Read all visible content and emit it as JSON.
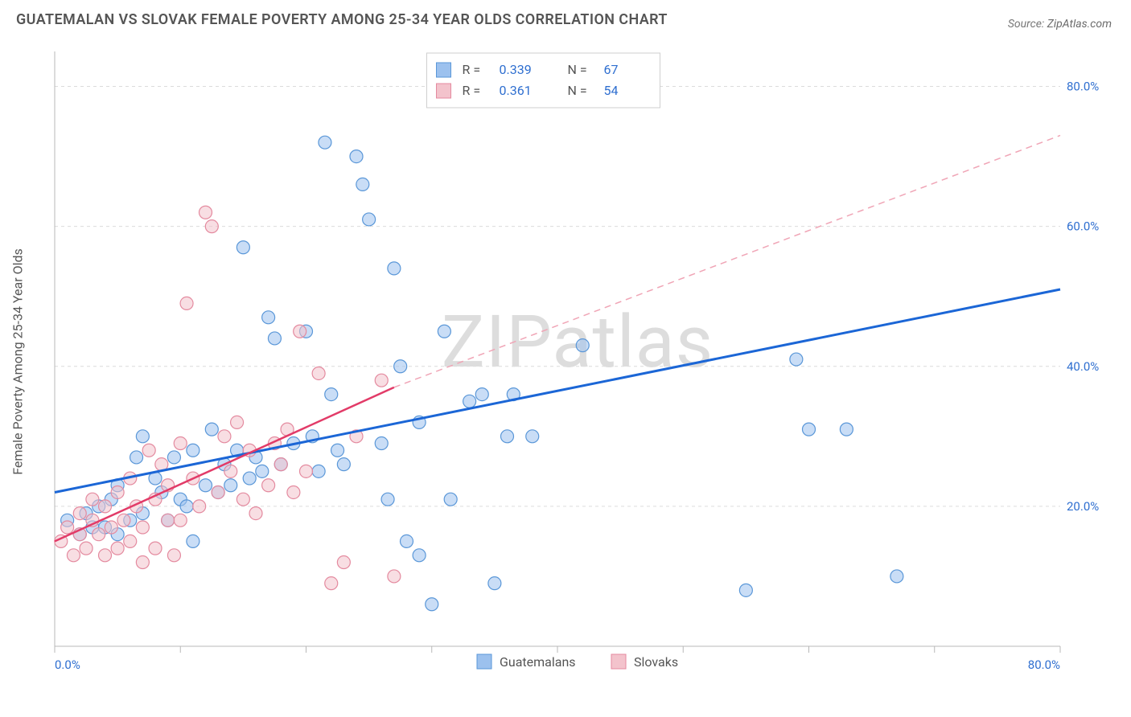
{
  "title": "GUATEMALAN VS SLOVAK FEMALE POVERTY AMONG 25-34 YEAR OLDS CORRELATION CHART",
  "source_label": "Source:",
  "source_value": "ZipAtlas.com",
  "ylabel": "Female Poverty Among 25-34 Year Olds",
  "watermark": "ZIPatlas",
  "chart": {
    "type": "scatter",
    "xlim": [
      0,
      80
    ],
    "ylim": [
      0,
      85
    ],
    "x_ticks": [
      0,
      10,
      20,
      30,
      40,
      50,
      60,
      70,
      80
    ],
    "x_tick_labels": {
      "0": "0.0%",
      "80": "80.0%"
    },
    "y_gridlines": [
      20,
      40,
      60,
      80
    ],
    "y_tick_labels": {
      "20": "20.0%",
      "40": "40.0%",
      "60": "60.0%",
      "80": "80.0%"
    },
    "background_color": "#ffffff",
    "grid_color": "#dcdcdc",
    "axis_color": "#b8b8b8",
    "tick_label_color": "#2f6fd0",
    "text_color": "#555555",
    "marker_radius": 8,
    "marker_opacity": 0.55,
    "series": [
      {
        "key": "guatemalans",
        "label": "Guatemalans",
        "fill": "#9cc1ee",
        "stroke": "#5a97d8",
        "trend": {
          "type": "solid",
          "color": "#1b66d6",
          "width": 3,
          "x1": 0,
          "y1": 22,
          "x2": 80,
          "y2": 51
        },
        "points": [
          [
            1,
            18
          ],
          [
            2,
            16
          ],
          [
            2.5,
            19
          ],
          [
            3,
            17
          ],
          [
            3.5,
            20
          ],
          [
            4,
            17
          ],
          [
            4.5,
            21
          ],
          [
            5,
            16
          ],
          [
            5,
            23
          ],
          [
            6,
            18
          ],
          [
            6.5,
            27
          ],
          [
            7,
            19
          ],
          [
            7,
            30
          ],
          [
            8,
            24
          ],
          [
            8.5,
            22
          ],
          [
            9,
            18
          ],
          [
            9.5,
            27
          ],
          [
            10,
            21
          ],
          [
            10.5,
            20
          ],
          [
            11,
            28
          ],
          [
            11,
            15
          ],
          [
            12,
            23
          ],
          [
            12.5,
            31
          ],
          [
            13,
            22
          ],
          [
            13.5,
            26
          ],
          [
            14,
            23
          ],
          [
            14.5,
            28
          ],
          [
            15,
            57
          ],
          [
            15.5,
            24
          ],
          [
            16,
            27
          ],
          [
            16.5,
            25
          ],
          [
            17,
            47
          ],
          [
            17.5,
            44
          ],
          [
            18,
            26
          ],
          [
            19,
            29
          ],
          [
            20,
            45
          ],
          [
            20.5,
            30
          ],
          [
            21,
            25
          ],
          [
            21.5,
            72
          ],
          [
            22,
            36
          ],
          [
            22.5,
            28
          ],
          [
            23,
            26
          ],
          [
            24,
            70
          ],
          [
            24.5,
            66
          ],
          [
            25,
            61
          ],
          [
            26,
            29
          ],
          [
            26.5,
            21
          ],
          [
            27,
            54
          ],
          [
            27.5,
            40
          ],
          [
            28,
            15
          ],
          [
            29,
            32
          ],
          [
            29,
            13
          ],
          [
            30,
            6
          ],
          [
            31,
            45
          ],
          [
            31.5,
            21
          ],
          [
            33,
            35
          ],
          [
            34,
            36
          ],
          [
            35,
            9
          ],
          [
            36,
            30
          ],
          [
            36.5,
            36
          ],
          [
            38,
            30
          ],
          [
            42,
            43
          ],
          [
            55,
            8
          ],
          [
            59,
            41
          ],
          [
            60,
            31
          ],
          [
            63,
            31
          ],
          [
            67,
            10
          ]
        ]
      },
      {
        "key": "slovaks",
        "label": "Slovaks",
        "fill": "#f3c3cc",
        "stroke": "#e48a9f",
        "trend": {
          "type": "dashed_after",
          "color_solid": "#e23b68",
          "color_dash": "#f0a5b6",
          "width": 2.5,
          "x1": 0,
          "y1": 15,
          "x_split": 27,
          "y_split": 37,
          "x2": 80,
          "y2": 73
        },
        "points": [
          [
            0.5,
            15
          ],
          [
            1,
            17
          ],
          [
            1.5,
            13
          ],
          [
            2,
            16
          ],
          [
            2,
            19
          ],
          [
            2.5,
            14
          ],
          [
            3,
            18
          ],
          [
            3,
            21
          ],
          [
            3.5,
            16
          ],
          [
            4,
            13
          ],
          [
            4,
            20
          ],
          [
            4.5,
            17
          ],
          [
            5,
            14
          ],
          [
            5,
            22
          ],
          [
            5.5,
            18
          ],
          [
            6,
            15
          ],
          [
            6,
            24
          ],
          [
            6.5,
            20
          ],
          [
            7,
            17
          ],
          [
            7,
            12
          ],
          [
            7.5,
            28
          ],
          [
            8,
            21
          ],
          [
            8,
            14
          ],
          [
            8.5,
            26
          ],
          [
            9,
            23
          ],
          [
            9,
            18
          ],
          [
            9.5,
            13
          ],
          [
            10,
            29
          ],
          [
            10,
            18
          ],
          [
            10.5,
            49
          ],
          [
            11,
            24
          ],
          [
            11.5,
            20
          ],
          [
            12,
            62
          ],
          [
            12.5,
            60
          ],
          [
            13,
            22
          ],
          [
            13.5,
            30
          ],
          [
            14,
            25
          ],
          [
            14.5,
            32
          ],
          [
            15,
            21
          ],
          [
            15.5,
            28
          ],
          [
            16,
            19
          ],
          [
            17,
            23
          ],
          [
            17.5,
            29
          ],
          [
            18,
            26
          ],
          [
            18.5,
            31
          ],
          [
            19,
            22
          ],
          [
            19.5,
            45
          ],
          [
            20,
            25
          ],
          [
            21,
            39
          ],
          [
            22,
            9
          ],
          [
            23,
            12
          ],
          [
            24,
            30
          ],
          [
            26,
            38
          ],
          [
            27,
            10
          ]
        ]
      }
    ],
    "stats_box": {
      "rows": [
        {
          "swatch_fill": "#9cc1ee",
          "swatch_stroke": "#5a97d8",
          "r_label": "R =",
          "r_value": "0.339",
          "n_label": "N =",
          "n_value": "67"
        },
        {
          "swatch_fill": "#f3c3cc",
          "swatch_stroke": "#e48a9f",
          "r_label": "R =",
          "r_value": "0.361",
          "n_label": "N =",
          "n_value": "54"
        }
      ],
      "r_value_color": "#2f6fd0",
      "n_value_color": "#2f6fd0",
      "label_color": "#555555"
    },
    "legend_bottom": [
      {
        "swatch_fill": "#9cc1ee",
        "swatch_stroke": "#5a97d8",
        "label": "Guatemalans"
      },
      {
        "swatch_fill": "#f3c3cc",
        "swatch_stroke": "#e48a9f",
        "label": "Slovaks"
      }
    ]
  }
}
